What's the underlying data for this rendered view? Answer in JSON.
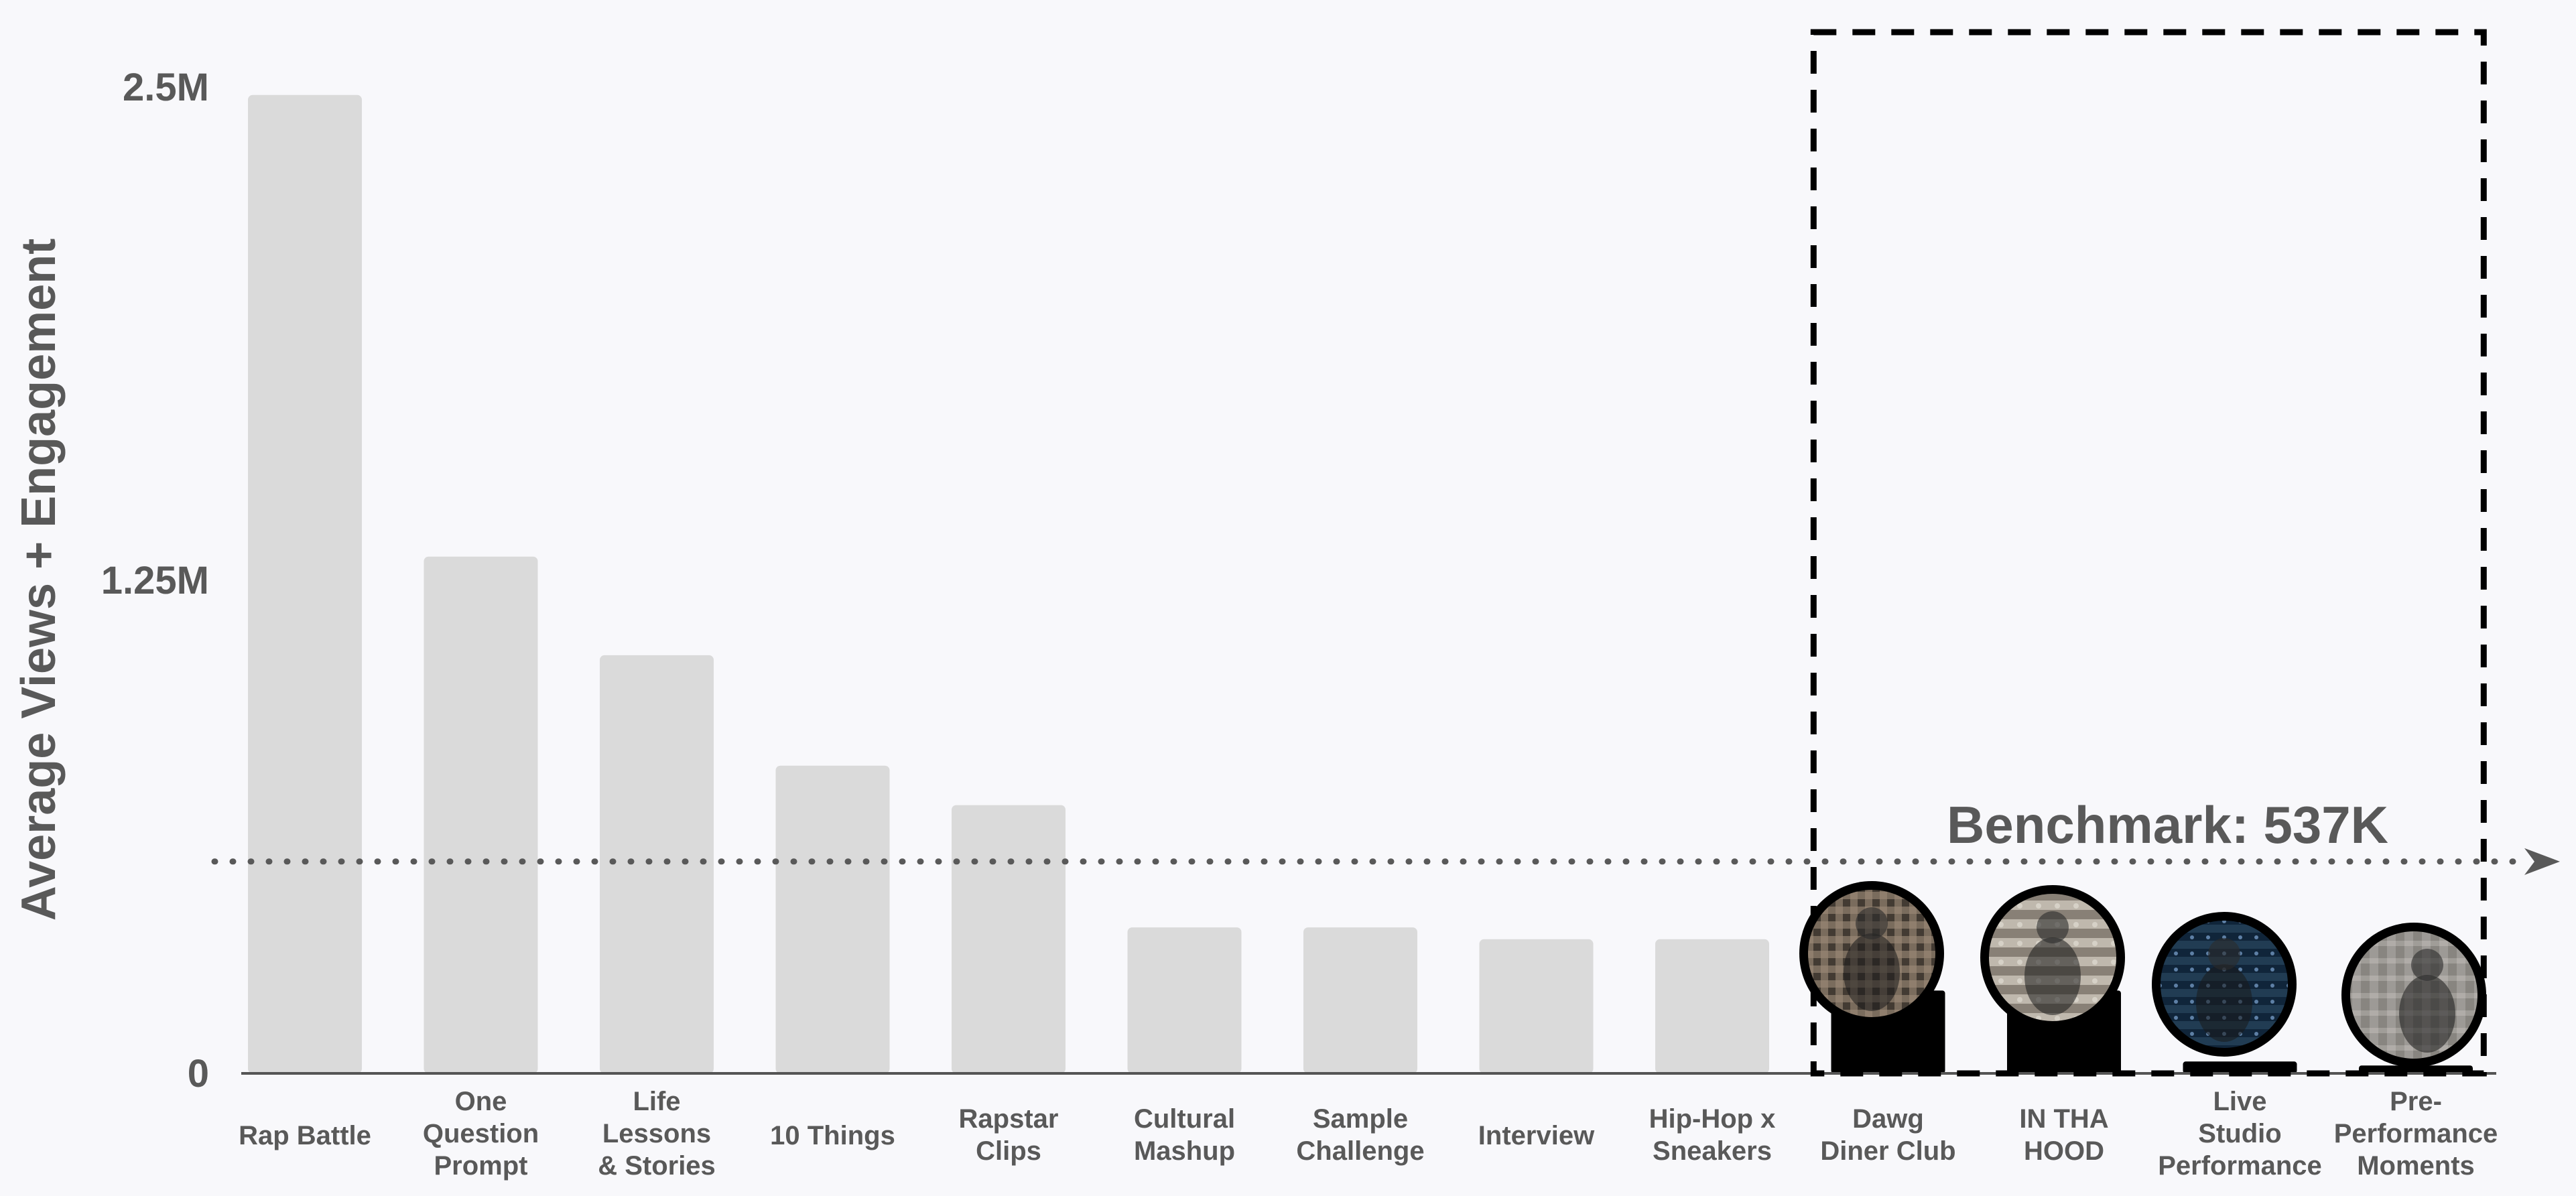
{
  "chart_data": {
    "type": "bar",
    "categories": [
      "Rap Battle",
      "One Question Prompt",
      "Life Lessons & Stories",
      "10 Things",
      "Rapstar Clips",
      "Cultural Mashup",
      "Sample Challenge",
      "Interview",
      "Hip-Hop x Sneakers",
      "Dawg Diner Club",
      "IN THA HOOD",
      "Live Studio Performance",
      "Pre-Performance Moments"
    ],
    "category_lines": [
      [
        "Rap Battle"
      ],
      [
        "One",
        "Question",
        "Prompt"
      ],
      [
        "Life",
        "Lessons",
        "& Stories"
      ],
      [
        "10 Things"
      ],
      [
        "Rapstar",
        "Clips"
      ],
      [
        "Cultural",
        "Mashup"
      ],
      [
        "Sample",
        "Challenge"
      ],
      [
        "Interview"
      ],
      [
        "Hip-Hop x",
        "Sneakers"
      ],
      [
        "Dawg",
        "Diner Club"
      ],
      [
        "IN THA",
        "HOOD"
      ],
      [
        "Live",
        "Studio",
        "Performance"
      ],
      [
        "Pre-",
        "Performance",
        "Moments"
      ]
    ],
    "values": [
      2480000,
      1310000,
      1060000,
      780000,
      680000,
      370000,
      370000,
      340000,
      340000,
      210000,
      210000,
      30000,
      20000
    ],
    "ylabel": "Average Views + Engagement",
    "ylim": [
      0,
      2500000
    ],
    "yticks": [
      0,
      1250000,
      2500000
    ],
    "ytick_labels": [
      "0",
      "1.25M",
      "2.5M"
    ],
    "benchmark": {
      "value": 537000,
      "label": "Benchmark: 537K"
    },
    "highlighted_categories": [
      "Dawg Diner Club",
      "IN THA HOOD",
      "Live Studio Performance",
      "Pre-Performance Moments"
    ],
    "colors": {
      "background": "#f8f8fb",
      "bar_default": "#dadada",
      "bar_highlight": "#000000",
      "text": "#595959",
      "axis": "#555555",
      "benchmark": "#595959",
      "highlight_border": "#000000"
    }
  }
}
